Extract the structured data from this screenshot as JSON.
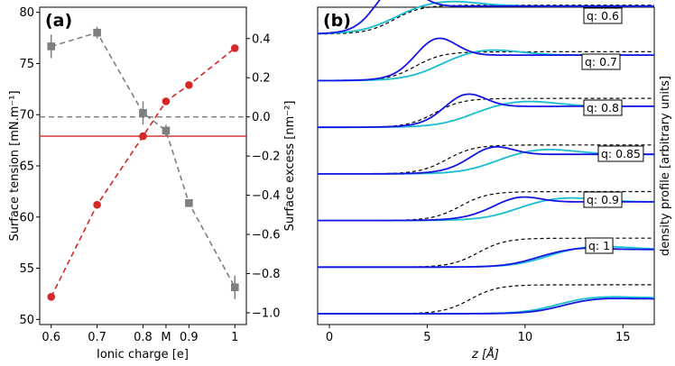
{
  "colors": {
    "tension": "#d62728",
    "excess": "#7f7f7f",
    "cyan": "#17becf",
    "blue": "#1515e6",
    "dashed": "#000000"
  },
  "chart_data": [
    {
      "type": "line",
      "panel_label": "(a)",
      "xlabel": "Ionic charge [e]",
      "ylabel_left": "Surface tension [mN.m⁻¹]",
      "ylabel_right": "Surface excess [nm⁻²]",
      "x_ticks": [
        {
          "x": 0.6,
          "label": "0.6"
        },
        {
          "x": 0.7,
          "label": "0.7"
        },
        {
          "x": 0.8,
          "label": "0.8"
        },
        {
          "x": 0.85,
          "label": "M"
        },
        {
          "x": 0.9,
          "label": "0.9"
        },
        {
          "x": 1.0,
          "label": "1"
        }
      ],
      "xlim": [
        0.575,
        1.025
      ],
      "ylim_left": [
        49.5,
        80.5
      ],
      "ylim_right": [
        -1.06,
        0.56
      ],
      "yticks_left": [
        {
          "v": 50,
          "label": "50"
        },
        {
          "v": 55,
          "label": "55"
        },
        {
          "v": 60,
          "label": "60"
        },
        {
          "v": 65,
          "label": "65"
        },
        {
          "v": 70,
          "label": "70"
        },
        {
          "v": 75,
          "label": "75"
        },
        {
          "v": 80,
          "label": "80"
        }
      ],
      "yticks_right": [
        {
          "v": -1.0,
          "label": "−1.0"
        },
        {
          "v": -0.8,
          "label": "−0.8"
        },
        {
          "v": -0.6,
          "label": "−0.6"
        },
        {
          "v": -0.4,
          "label": "−0.4"
        },
        {
          "v": -0.2,
          "label": "−0.2"
        },
        {
          "v": 0.0,
          "label": "0.0"
        },
        {
          "v": 0.2,
          "label": "0.2"
        },
        {
          "v": 0.4,
          "label": "0.4"
        }
      ],
      "reference_lines": [
        {
          "axis": "left",
          "value": 67.9,
          "style": "solid",
          "color_key": "tension"
        },
        {
          "axis": "right",
          "value": 0.0,
          "style": "dashed",
          "color_key": "excess"
        }
      ],
      "series": [
        {
          "name": "Surface tension",
          "axis": "left",
          "marker": "circle",
          "x": [
            0.6,
            0.7,
            0.8,
            0.85,
            0.9,
            1.0
          ],
          "values": [
            52.2,
            61.2,
            67.9,
            71.3,
            72.9,
            76.5
          ]
        },
        {
          "name": "Surface excess",
          "axis": "right",
          "marker": "square",
          "x": [
            0.6,
            0.7,
            0.8,
            0.85,
            0.9,
            1.0
          ],
          "values": [
            0.36,
            0.43,
            0.02,
            -0.07,
            -0.44,
            -0.87
          ],
          "errors": [
            0.06,
            0.03,
            0.06,
            0.03,
            0.02,
            0.06
          ]
        }
      ]
    },
    {
      "type": "line",
      "panel_label": "(b)",
      "xlabel": "z [Å]",
      "ylabel_right": "density profile [arbitrary units]",
      "xlim": [
        -0.6,
        16.6
      ],
      "xticks": [
        {
          "v": 0,
          "label": "0"
        },
        {
          "v": 5,
          "label": "5"
        },
        {
          "v": 10,
          "label": "10"
        },
        {
          "v": 15,
          "label": "15"
        }
      ],
      "baseline_spacing": 1.0,
      "profiles": [
        {
          "q": "q: 0.6",
          "offset": 6.2,
          "dashed_center": 3.3,
          "dashed_height": 0.62,
          "cyan_center": 3.2,
          "cyan_height": 0.6,
          "cyan_peak_pos": 5.9,
          "cyan_peak_amp": 0.12,
          "blue_center": 2.6,
          "blue_height": 0.6,
          "blue_peak_pos": 3.4,
          "blue_peak_amp": 0.62
        },
        {
          "q": "q: 0.7",
          "offset": 5.2,
          "dashed_center": 4.4,
          "dashed_height": 0.62,
          "cyan_center": 5.5,
          "cyan_height": 0.55,
          "cyan_peak_pos": 8.0,
          "cyan_peak_amp": 0.13,
          "blue_center": 4.5,
          "blue_height": 0.55,
          "blue_peak_pos": 5.4,
          "blue_peak_amp": 0.48
        },
        {
          "q": "q: 0.8",
          "offset": 4.2,
          "dashed_center": 5.4,
          "dashed_height": 0.62,
          "cyan_center": 7.1,
          "cyan_height": 0.45,
          "cyan_peak_pos": 9.9,
          "cyan_peak_amp": 0.12,
          "blue_center": 5.9,
          "blue_height": 0.45,
          "blue_peak_pos": 6.9,
          "blue_peak_amp": 0.35
        },
        {
          "q": "q: 0.85",
          "offset": 3.2,
          "dashed_center": 6.0,
          "dashed_height": 0.62,
          "cyan_center": 8.3,
          "cyan_height": 0.42,
          "cyan_peak_pos": 10.9,
          "cyan_peak_amp": 0.12,
          "blue_center": 7.0,
          "blue_height": 0.42,
          "blue_peak_pos": 8.3,
          "blue_peak_amp": 0.22
        },
        {
          "q": "q: 0.9",
          "offset": 2.2,
          "dashed_center": 6.7,
          "dashed_height": 0.62,
          "cyan_center": 9.4,
          "cyan_height": 0.4,
          "cyan_peak_pos": 12.0,
          "cyan_peak_amp": 0.1,
          "blue_center": 8.0,
          "blue_height": 0.4,
          "blue_peak_pos": 9.7,
          "blue_peak_amp": 0.14
        },
        {
          "q": "q: 1",
          "offset": 1.2,
          "dashed_center": 7.6,
          "dashed_height": 0.62,
          "cyan_center": 11.0,
          "cyan_height": 0.38,
          "cyan_peak_pos": 13.5,
          "cyan_peak_amp": 0.08,
          "blue_center": 10.5,
          "blue_height": 0.38,
          "blue_peak_pos": 13.0,
          "blue_peak_amp": 0.04,
          "label_offset": 2.2
        }
      ]
    }
  ]
}
